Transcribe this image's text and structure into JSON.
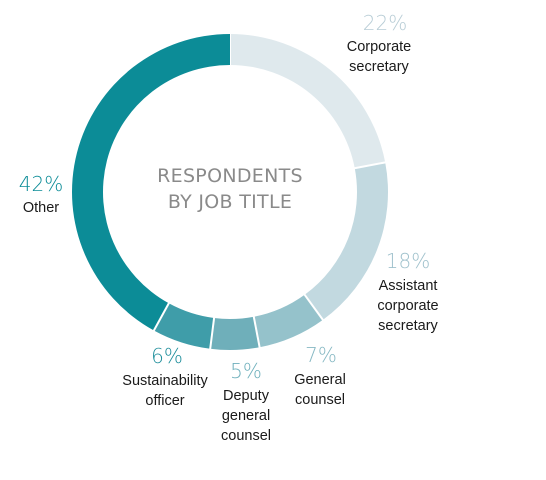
{
  "chart_data": {
    "type": "pie",
    "variant": "donut",
    "title_lines": [
      "RESPONDENTS",
      "BY JOB TITLE"
    ],
    "slices": [
      {
        "percent_label": "22%",
        "value": 22,
        "label_lines": [
          "Corporate",
          "secretary"
        ],
        "color": "#dfe9ed",
        "pct_color": "#b8cdd6"
      },
      {
        "percent_label": "18%",
        "value": 18,
        "label_lines": [
          "Assistant",
          "corporate",
          "secretary"
        ],
        "color": "#c2d9e0",
        "pct_color": "#9fc1cc"
      },
      {
        "percent_label": "7%",
        "value": 7,
        "label_lines": [
          "General",
          "counsel"
        ],
        "color": "#95c2cb",
        "pct_color": "#86b8c3"
      },
      {
        "percent_label": "5%",
        "value": 5,
        "label_lines": [
          "Deputy",
          "general",
          "counsel"
        ],
        "color": "#6fafba",
        "pct_color": "#6fb0bc"
      },
      {
        "percent_label": "6%",
        "value": 6,
        "label_lines": [
          "Sustainability",
          "officer"
        ],
        "color": "#3f9da9",
        "pct_color": "#1e8e9b"
      },
      {
        "percent_label": "42%",
        "value": 42,
        "label_lines": [
          "Other"
        ],
        "color": "#0c8c97",
        "pct_color": "#0c8c97"
      }
    ]
  }
}
